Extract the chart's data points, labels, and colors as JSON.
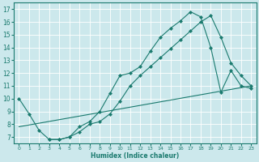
{
  "xlabel": "Humidex (Indice chaleur)",
  "bg_color": "#cce8ec",
  "line_color": "#1a7a6e",
  "grid_color": "#b0d8dc",
  "xlim": [
    -0.5,
    23.5
  ],
  "ylim": [
    6.5,
    17.5
  ],
  "xticks": [
    0,
    1,
    2,
    3,
    4,
    5,
    6,
    7,
    8,
    9,
    10,
    11,
    12,
    13,
    14,
    15,
    16,
    17,
    18,
    19,
    20,
    21,
    22,
    23
  ],
  "yticks": [
    7,
    8,
    9,
    10,
    11,
    12,
    13,
    14,
    15,
    16,
    17
  ],
  "line1_x": [
    0,
    1,
    2,
    3,
    4,
    5,
    6,
    7,
    8,
    9,
    10,
    11,
    12,
    13,
    14,
    15,
    16,
    17,
    18,
    19,
    20,
    21,
    22,
    23
  ],
  "line1_y": [
    10.0,
    8.8,
    7.5,
    6.8,
    6.8,
    7.0,
    7.8,
    8.2,
    9.0,
    10.4,
    11.8,
    12.0,
    12.5,
    13.7,
    14.8,
    15.5,
    16.1,
    16.8,
    16.4,
    14.0,
    10.5,
    12.2,
    11.0,
    10.8
  ],
  "line2_x": [
    0,
    23
  ],
  "line2_y": [
    7.8,
    11.0
  ],
  "line3_x": [
    3,
    4,
    5,
    6,
    7,
    8,
    9,
    10,
    11,
    12,
    13,
    14,
    15,
    16,
    17,
    18,
    19,
    20,
    21,
    22,
    23
  ],
  "line3_y": [
    6.8,
    6.8,
    7.0,
    7.4,
    8.0,
    8.2,
    8.8,
    9.8,
    11.0,
    11.8,
    12.5,
    13.2,
    13.9,
    14.6,
    15.3,
    16.0,
    16.5,
    14.8,
    12.8,
    11.8,
    11.0
  ]
}
